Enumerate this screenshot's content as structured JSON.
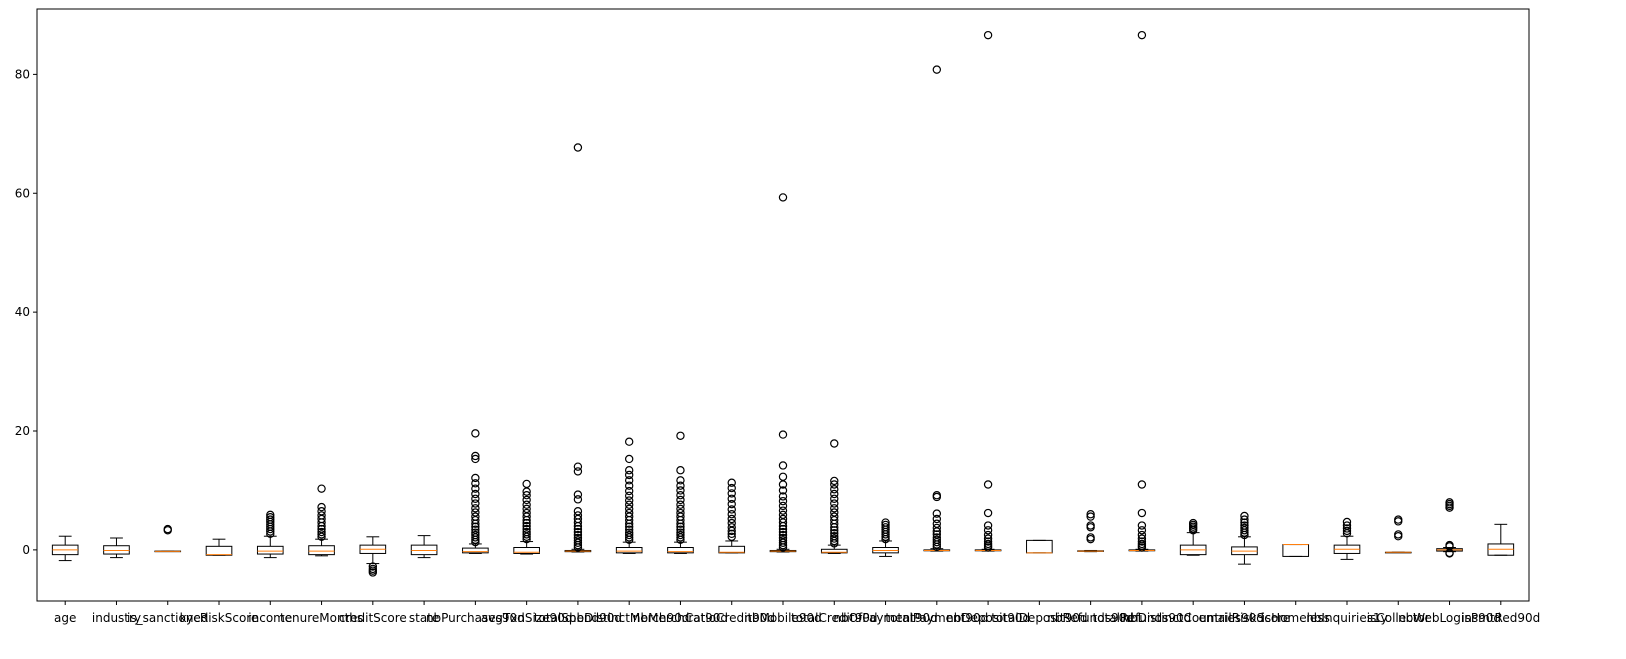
{
  "chart_data": {
    "type": "boxplot",
    "title": "",
    "xlabel": "",
    "ylabel": "",
    "ylim": [
      -8.6,
      91
    ],
    "yticks": [
      0,
      20,
      40,
      60,
      80
    ],
    "grid": false,
    "colors": {
      "box": "#000000",
      "median": "#ff7f0e",
      "outlier_edge": "#000000"
    },
    "categories": [
      {
        "label": "age",
        "q1": -0.8,
        "median": 0.0,
        "q3": 0.8,
        "whisker_low": -1.8,
        "whisker_high": 2.3,
        "outliers": []
      },
      {
        "label": "industry",
        "q1": -0.7,
        "median": -0.1,
        "q3": 0.7,
        "whisker_low": -1.3,
        "whisker_high": 2.0,
        "outliers": []
      },
      {
        "label": "is_sanctioned",
        "q1": -0.25,
        "median": -0.25,
        "q3": -0.2,
        "whisker_low": -0.25,
        "whisker_high": -0.2,
        "outliers": [
          3.3,
          3.5
        ]
      },
      {
        "label": "kycRiskScore",
        "q1": -0.9,
        "median": -0.8,
        "q3": 0.6,
        "whisker_low": -0.9,
        "whisker_high": 1.8,
        "outliers": []
      },
      {
        "label": "income",
        "q1": -0.7,
        "median": -0.2,
        "q3": 0.6,
        "whisker_low": -1.3,
        "whisker_high": 2.3,
        "outliers": [
          2.7,
          3.1,
          3.5,
          3.9,
          4.3,
          4.7,
          5.1,
          5.5,
          5.9
        ]
      },
      {
        "label": "tenureMonths",
        "q1": -0.8,
        "median": -0.2,
        "q3": 0.7,
        "whisker_low": -1.0,
        "whisker_high": 1.8,
        "outliers": [
          2.2,
          2.6,
          3.0,
          3.5,
          4.0,
          4.6,
          5.2,
          5.8,
          6.5,
          7.2,
          10.3
        ]
      },
      {
        "label": "creditScore",
        "q1": -0.6,
        "median": 0.1,
        "q3": 0.8,
        "whisker_low": -2.3,
        "whisker_high": 2.2,
        "outliers": [
          -2.8,
          -3.2,
          -3.5,
          -3.8
        ]
      },
      {
        "label": "state",
        "q1": -0.8,
        "median": -0.1,
        "q3": 0.8,
        "whisker_low": -1.3,
        "whisker_high": 2.4,
        "outliers": []
      },
      {
        "label": "nbPurchases90d",
        "q1": -0.5,
        "median": -0.3,
        "q3": 0.3,
        "whisker_low": -0.6,
        "whisker_high": 1.0,
        "outliers": [
          1.3,
          1.7,
          2.1,
          2.5,
          2.9,
          3.4,
          3.9,
          4.4,
          5.0,
          5.6,
          6.3,
          7.0,
          7.8,
          8.6,
          9.4,
          10.3,
          11.2,
          12.1,
          15.3,
          15.8,
          19.6
        ]
      },
      {
        "label": "avgTxnSize90d",
        "q1": -0.6,
        "median": -0.4,
        "q3": 0.4,
        "whisker_low": -0.7,
        "whisker_high": 1.4,
        "outliers": [
          1.8,
          2.2,
          2.6,
          3.0,
          3.5,
          4.0,
          4.5,
          5.0,
          5.6,
          6.2,
          6.9,
          7.6,
          8.4,
          9.2,
          9.8,
          11.1
        ]
      },
      {
        "label": "totalSpend90d",
        "q1": -0.3,
        "median": -0.2,
        "q3": -0.1,
        "whisker_low": -0.35,
        "whisker_high": 0.1,
        "outliers": [
          0.4,
          0.8,
          1.2,
          1.6,
          2.0,
          2.5,
          3.0,
          3.5,
          4.0,
          4.6,
          5.2,
          5.8,
          6.5,
          8.5,
          9.3,
          13.2,
          14.0,
          67.7
        ]
      },
      {
        "label": "nbDistinctMerch90d",
        "q1": -0.5,
        "median": -0.2,
        "q3": 0.4,
        "whisker_low": -0.6,
        "whisker_high": 1.3,
        "outliers": [
          1.7,
          2.1,
          2.5,
          2.9,
          3.4,
          3.9,
          4.4,
          5.0,
          5.6,
          6.2,
          6.9,
          7.6,
          8.3,
          9.1,
          9.9,
          10.8,
          11.7,
          12.6,
          13.4,
          15.3,
          18.2
        ]
      },
      {
        "label": "nbMerchCat90d",
        "q1": -0.5,
        "median": -0.3,
        "q3": 0.4,
        "whisker_low": -0.6,
        "whisker_high": 1.3,
        "outliers": [
          1.7,
          2.1,
          2.5,
          2.9,
          3.4,
          3.9,
          4.4,
          5.0,
          5.6,
          6.2,
          6.9,
          7.6,
          8.4,
          9.2,
          10.0,
          10.8,
          11.7,
          13.4,
          19.2
        ]
      },
      {
        "label": "ratioCredit90d",
        "q1": -0.5,
        "median": -0.4,
        "q3": 0.6,
        "whisker_low": -0.5,
        "whisker_high": 1.5,
        "outliers": [
          2.2,
          2.7,
          3.2,
          3.8,
          4.5,
          5.2,
          6.0,
          6.8,
          7.7,
          8.6,
          9.5,
          10.4,
          11.3
        ]
      },
      {
        "label": "nbMobile90d",
        "q1": -0.3,
        "median": -0.2,
        "q3": -0.1,
        "whisker_low": -0.35,
        "whisker_high": 0.1,
        "outliers": [
          0.4,
          0.8,
          1.2,
          1.6,
          2.0,
          2.5,
          3.0,
          3.5,
          4.0,
          4.6,
          5.2,
          5.9,
          6.6,
          7.4,
          8.2,
          9.0,
          10.0,
          11.0,
          12.3,
          14.2,
          19.4,
          59.3
        ]
      },
      {
        "label": "totalCredit90d",
        "q1": -0.5,
        "median": -0.4,
        "q3": 0.1,
        "whisker_low": -0.6,
        "whisker_high": 0.8,
        "outliers": [
          1.1,
          1.5,
          1.9,
          2.3,
          2.8,
          3.3,
          3.8,
          4.4,
          5.0,
          5.6,
          6.3,
          7.0,
          7.8,
          8.6,
          9.4,
          10.2,
          11.0,
          11.6,
          17.9
        ]
      },
      {
        "label": "nbOfPayment90d",
        "q1": -0.5,
        "median": -0.1,
        "q3": 0.4,
        "whisker_low": -1.1,
        "whisker_high": 1.5,
        "outliers": [
          1.8,
          2.2,
          2.6,
          3.0,
          3.4,
          3.8,
          4.2,
          4.6
        ]
      },
      {
        "label": "totalPayment90d",
        "q1": -0.15,
        "median": -0.1,
        "q3": 0.0,
        "whisker_low": -0.2,
        "whisker_high": 0.2,
        "outliers": [
          0.5,
          0.9,
          1.3,
          1.7,
          2.1,
          2.6,
          3.1,
          3.7,
          4.4,
          5.2,
          6.1,
          8.9,
          9.2,
          80.8
        ]
      },
      {
        "label": "nbDeposit90d",
        "q1": -0.15,
        "median": -0.1,
        "q3": 0.0,
        "whisker_low": -0.2,
        "whisker_high": 0.1,
        "outliers": [
          0.4,
          0.7,
          1.0,
          1.4,
          1.9,
          2.5,
          3.3,
          4.1,
          6.2,
          11.0,
          86.6
        ]
      },
      {
        "label": "totalDeposit90d",
        "q1": -0.5,
        "median": -0.5,
        "q3": 1.6,
        "whisker_low": -0.5,
        "whisker_high": 1.6,
        "outliers": []
      },
      {
        "label": "nbRefunds90d",
        "q1": -0.25,
        "median": -0.2,
        "q3": -0.15,
        "whisker_low": -0.3,
        "whisker_high": -0.1,
        "outliers": [
          1.8,
          2.1,
          3.8,
          4.1,
          5.6,
          6.0
        ]
      },
      {
        "label": "totalRefunds90d",
        "q1": -0.15,
        "median": -0.1,
        "q3": 0.0,
        "whisker_low": -0.2,
        "whisker_high": 0.1,
        "outliers": [
          0.4,
          0.7,
          1.0,
          1.4,
          1.9,
          2.5,
          3.3,
          4.1,
          6.2,
          11.0,
          86.6
        ]
      },
      {
        "label": "nbDistinctCountries90d",
        "q1": -0.8,
        "median": 0.0,
        "q3": 0.8,
        "whisker_low": -0.9,
        "whisker_high": 2.9,
        "outliers": [
          3.3,
          3.6,
          3.9,
          4.2,
          4.5
        ]
      },
      {
        "label": "emailRiskScore",
        "q1": -0.8,
        "median": -0.2,
        "q3": 0.5,
        "whisker_low": -2.4,
        "whisker_high": 2.2,
        "outliers": [
          2.5,
          2.9,
          3.3,
          3.7,
          4.1,
          4.6,
          5.1,
          5.7
        ]
      },
      {
        "label": "isHomeless",
        "q1": -1.1,
        "median": 0.9,
        "q3": 0.9,
        "whisker_low": -1.1,
        "whisker_high": 0.9,
        "outliers": []
      },
      {
        "label": "nbInquiries1y",
        "q1": -0.6,
        "median": 0.1,
        "q3": 0.8,
        "whisker_low": -1.6,
        "whisker_high": 2.3,
        "outliers": [
          2.8,
          3.2,
          3.6,
          4.1,
          4.7
        ]
      },
      {
        "label": "isCollector",
        "q1": -0.4,
        "median": -0.4,
        "q3": -0.4,
        "whisker_low": -0.4,
        "whisker_high": -0.4,
        "outliers": [
          2.3,
          2.6,
          4.8,
          5.1
        ]
      },
      {
        "label": "nbWebLogins90d",
        "q1": -0.2,
        "median": 0.0,
        "q3": 0.2,
        "whisker_low": -0.3,
        "whisker_high": 0.4,
        "outliers": [
          -0.6,
          -0.5,
          0.6,
          0.8,
          7.1,
          7.4,
          7.7,
          8.0
        ]
      },
      {
        "label": "isPmtRed90d",
        "q1": -0.9,
        "median": 0.1,
        "q3": 1.0,
        "whisker_low": -0.9,
        "whisker_high": 4.3,
        "outliers": []
      }
    ]
  }
}
